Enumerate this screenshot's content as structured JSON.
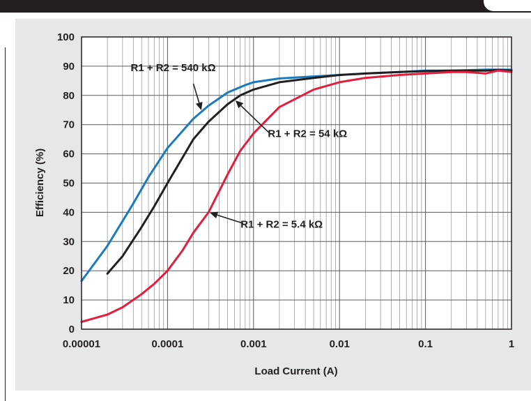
{
  "chart_data": {
    "type": "line",
    "title": "",
    "xlabel": "Load Current (A)",
    "ylabel": "Efficiency (%)",
    "xscale": "log",
    "xlim": [
      1e-05,
      1
    ],
    "ylim": [
      0,
      100
    ],
    "x_ticks": [
      "0.00001",
      "0.0001",
      "0.001",
      "0.01",
      "0.1",
      "1"
    ],
    "y_ticks": [
      "0",
      "10",
      "20",
      "30",
      "40",
      "50",
      "60",
      "70",
      "80",
      "90",
      "100"
    ],
    "grid": true,
    "series": [
      {
        "name": "R1 + R2 = 540 kΩ",
        "color": "#1a7abf",
        "x": [
          1e-05,
          2e-05,
          4e-05,
          6e-05,
          0.0001,
          0.0002,
          0.0003,
          0.0005,
          0.0008,
          0.001,
          0.002,
          0.005,
          0.01,
          0.02,
          0.05,
          0.1,
          0.2,
          0.5,
          1
        ],
        "y": [
          16.5,
          28.5,
          43,
          52,
          62,
          72,
          76.5,
          81,
          83.5,
          84.5,
          85.8,
          86.5,
          87,
          87.5,
          88,
          88.5,
          88.5,
          88.8,
          88.8
        ]
      },
      {
        "name": "R1 + R2 = 54 kΩ",
        "color": "#231f20",
        "x": [
          2e-05,
          3e-05,
          5e-05,
          7e-05,
          0.0001,
          0.0002,
          0.0003,
          0.0005,
          0.0007,
          0.001,
          0.002,
          0.005,
          0.01,
          0.02,
          0.05,
          0.1,
          0.2,
          0.5,
          0.7,
          1
        ],
        "y": [
          19,
          25,
          35,
          42,
          50,
          65,
          71,
          77,
          80,
          82,
          84.5,
          86,
          87,
          87.5,
          88,
          88.3,
          88.5,
          88.5,
          88.7,
          88.5
        ]
      },
      {
        "name": "R1 + R2 = 5.4 kΩ",
        "color": "#e31d3c",
        "x": [
          1e-05,
          2e-05,
          3e-05,
          5e-05,
          7e-05,
          0.0001,
          0.00015,
          0.0002,
          0.0003,
          0.0005,
          0.0007,
          0.001,
          0.002,
          0.005,
          0.01,
          0.02,
          0.05,
          0.1,
          0.2,
          0.3,
          0.5,
          0.7,
          1
        ],
        "y": [
          2.5,
          5,
          7.5,
          12,
          15.5,
          20,
          27,
          33,
          40,
          53,
          61,
          67,
          76,
          82,
          84.5,
          86,
          87,
          87.5,
          88,
          88,
          87.5,
          88.5,
          88
        ]
      }
    ],
    "annotations": [
      {
        "text": "R1 + R2 = 540 kΩ",
        "series": 0,
        "x": 0.00025
      },
      {
        "text": "R1 + R2 = 54 kΩ",
        "series": 1,
        "x": 0.0006
      },
      {
        "text": "R1 + R2 = 5.4 kΩ",
        "series": 2,
        "x": 0.0003
      }
    ]
  }
}
